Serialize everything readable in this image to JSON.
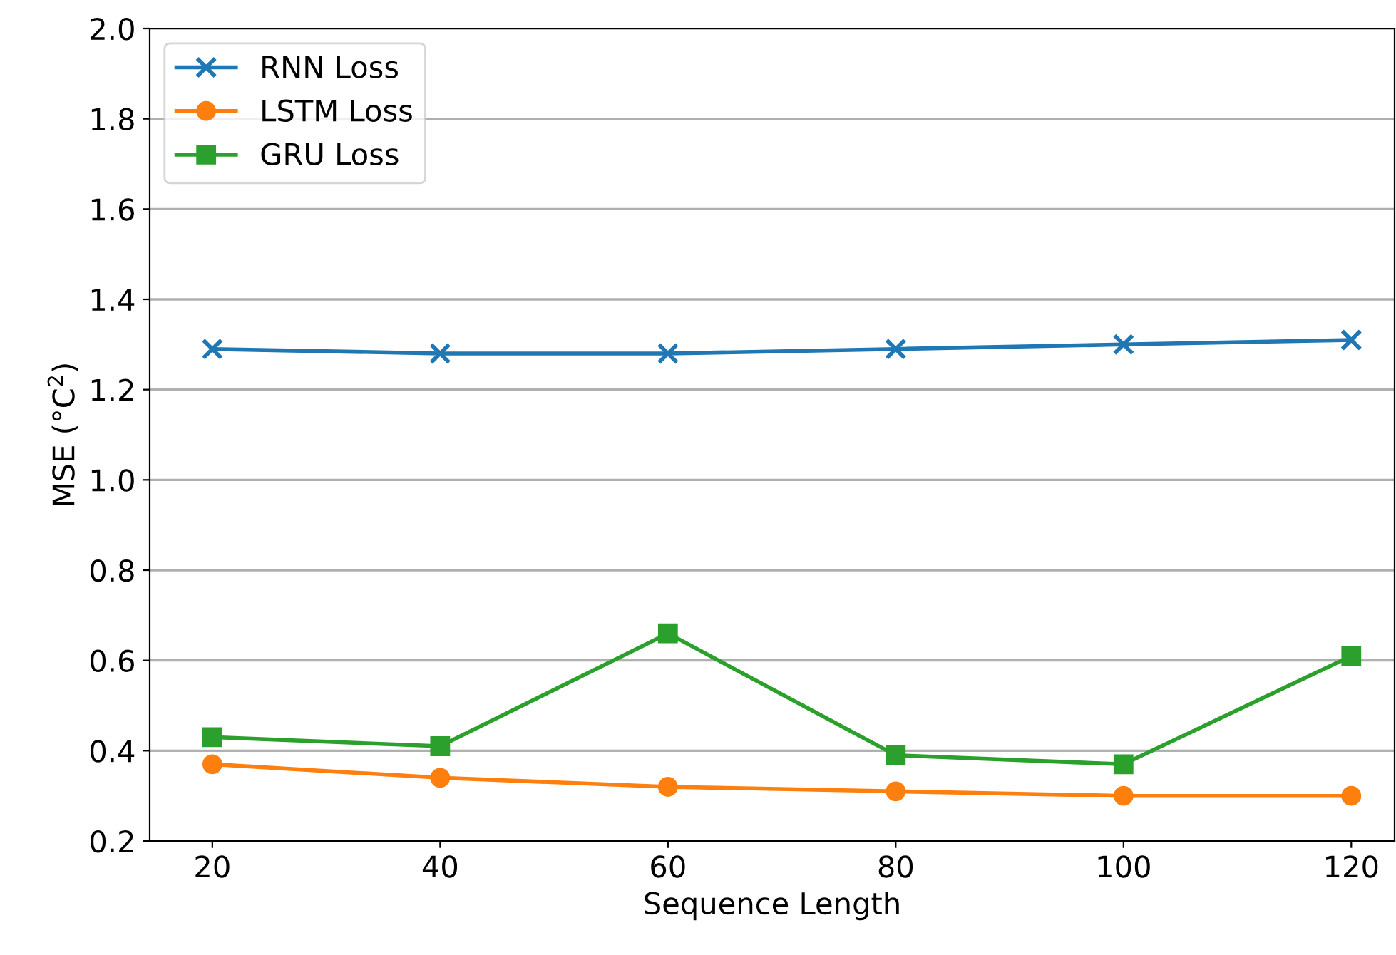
{
  "chart_data": {
    "type": "line",
    "xlabel": "Sequence Length",
    "ylabel": "MSE (°C$^{2}$)",
    "x": [
      20,
      40,
      60,
      80,
      100,
      120
    ],
    "series": [
      {
        "name": "RNN Loss",
        "color": "#1f77b4",
        "marker": "cross",
        "values": [
          1.29,
          1.28,
          1.28,
          1.29,
          1.3,
          1.31
        ]
      },
      {
        "name": "LSTM Loss",
        "color": "#ff7f0e",
        "marker": "circle",
        "values": [
          0.37,
          0.34,
          0.32,
          0.31,
          0.3,
          0.3
        ]
      },
      {
        "name": "GRU Loss",
        "color": "#2ca02c",
        "marker": "square",
        "values": [
          0.43,
          0.41,
          0.66,
          0.39,
          0.37,
          0.61
        ]
      }
    ],
    "xlim": [
      14.5,
      123.8
    ],
    "xticks": [
      20,
      40,
      60,
      80,
      100,
      120
    ],
    "ylim": [
      0.2,
      2.0
    ],
    "yticks": [
      {
        "value": 0.2,
        "label": "0.2"
      },
      {
        "value": 0.4,
        "label": "0.4"
      },
      {
        "value": 0.6,
        "label": "0.6"
      },
      {
        "value": 0.8,
        "label": "0.8"
      },
      {
        "value": 1.0,
        "label": "1.0"
      },
      {
        "value": 1.2,
        "label": "1.2"
      },
      {
        "value": 1.4,
        "label": "1.4"
      },
      {
        "value": 1.6,
        "label": "1.6"
      },
      {
        "value": 1.8,
        "label": "1.8"
      },
      {
        "value": 2.0,
        "label": "2.0"
      }
    ],
    "grid": "y",
    "legend": "top left",
    "line_style": "solid"
  }
}
